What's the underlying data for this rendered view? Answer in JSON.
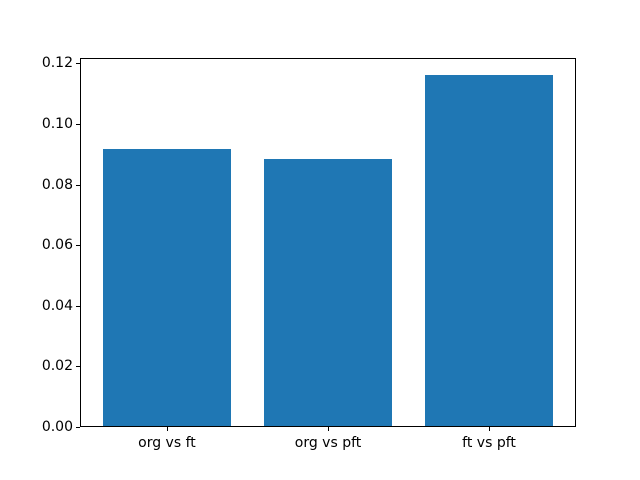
{
  "figure": {
    "background_color": "#ffffff",
    "axis_color": "#000000",
    "text_color": "#000000"
  },
  "chart_data": {
    "type": "bar",
    "title": "",
    "xlabel": "",
    "ylabel": "",
    "categories": [
      "org vs ft",
      "org vs pft",
      "ft vs pft"
    ],
    "values": [
      0.0915,
      0.088,
      0.116
    ],
    "bar_color": "#1f77b4",
    "bar_width": 0.8,
    "xlim": [
      -0.54,
      2.54
    ],
    "ylim": [
      0,
      0.1218
    ],
    "yticks": [
      0.0,
      0.02,
      0.04,
      0.06,
      0.08,
      0.1,
      0.12
    ],
    "ytick_labels": [
      "0.00",
      "0.02",
      "0.04",
      "0.06",
      "0.08",
      "0.10",
      "0.12"
    ],
    "grid": false,
    "legend_position": "none"
  }
}
